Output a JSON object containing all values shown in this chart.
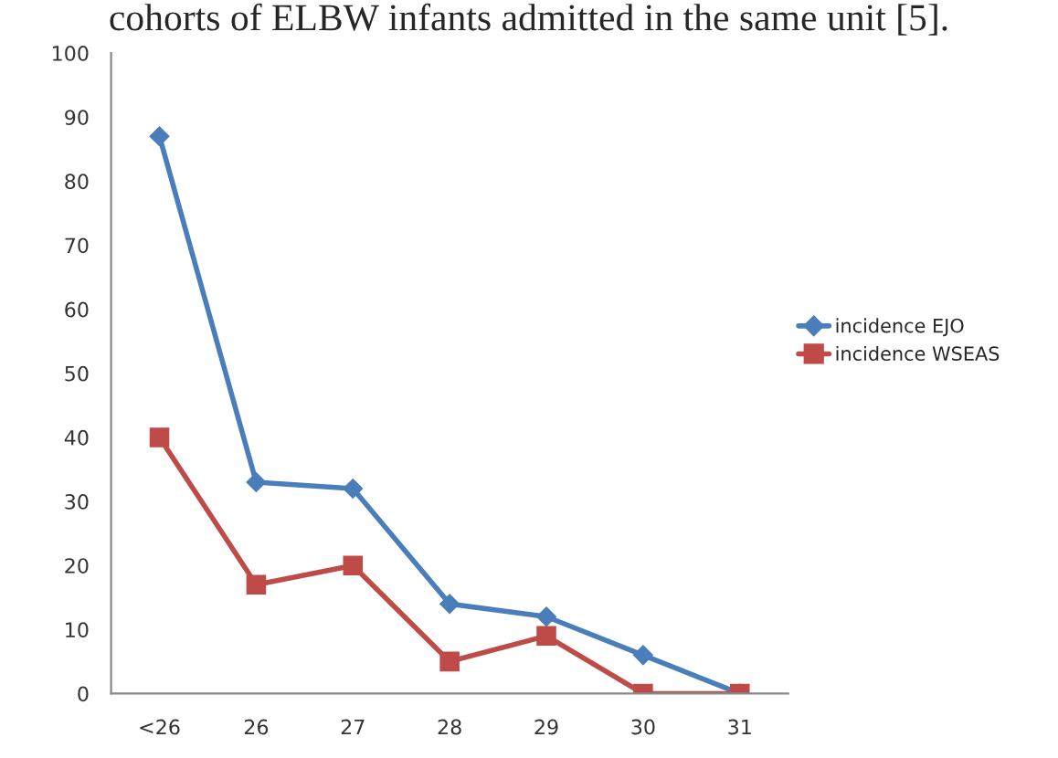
{
  "chart_data": {
    "type": "line",
    "annotations": [
      "cohorts of ELBW infants admitted in the same unit [5]."
    ],
    "categories": [
      "<26",
      "26",
      "27",
      "28",
      "29",
      "30",
      "31"
    ],
    "series": [
      {
        "name": "incidence EJO",
        "color": "#4a7ebb",
        "marker": "diamond",
        "values": [
          87,
          33,
          32,
          14,
          12,
          6,
          0
        ]
      },
      {
        "name": "incidence WSEAS",
        "color": "#be4b48",
        "marker": "square",
        "values": [
          40,
          17,
          20,
          5,
          9,
          0,
          0
        ]
      }
    ],
    "ylim": [
      0,
      100
    ],
    "yticks": [
      0,
      10,
      20,
      30,
      40,
      50,
      60,
      70,
      80,
      90,
      100
    ],
    "grid": false,
    "legend": "right"
  }
}
